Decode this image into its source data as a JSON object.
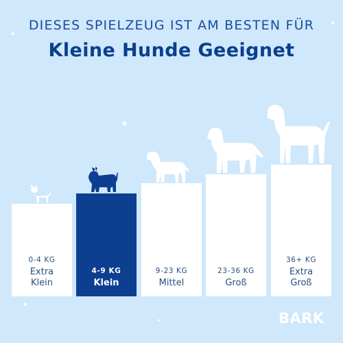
{
  "header": {
    "subtitle": "DIESES SPIELZEUG IST AM BESTEN FÜR",
    "title": "Kleine Hunde Geeignet"
  },
  "size_chart": [
    {
      "weight": "0-4 KG",
      "size": "Extra\nKlein",
      "selected": false
    },
    {
      "weight": "4-9 KG",
      "size": "Klein",
      "selected": true
    },
    {
      "weight": "9-23 KG",
      "size": "Mittel",
      "selected": false
    },
    {
      "weight": "23-36 KG",
      "size": "Groß",
      "selected": false
    },
    {
      "weight": "36+ KG",
      "size": "Extra\nGroß",
      "selected": false
    }
  ],
  "brand": {
    "logo_text": "BARK"
  },
  "colors": {
    "background": "#cfe8fb",
    "accent": "#0d3f91",
    "bar": "#ffffff"
  }
}
